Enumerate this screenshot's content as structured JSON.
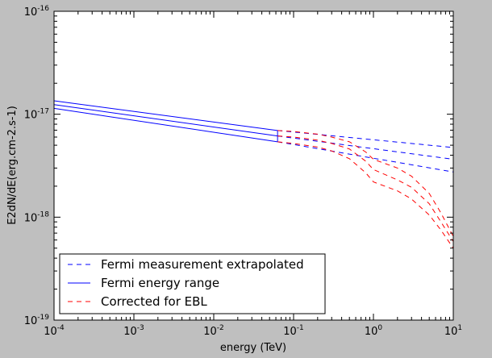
{
  "chart_data": {
    "type": "line",
    "xlabel": "energy (TeV)",
    "ylabel": "E2dN/dE(erg.cm-2.s-1)",
    "xscale": "log",
    "yscale": "log",
    "xlim": [
      0.0001,
      10
    ],
    "ylim": [
      1e-19,
      1e-16
    ],
    "x_ticks": [
      {
        "value": 0.0001,
        "base": "10",
        "exp": "-4"
      },
      {
        "value": 0.001,
        "base": "10",
        "exp": "-3"
      },
      {
        "value": 0.01,
        "base": "10",
        "exp": "-2"
      },
      {
        "value": 0.1,
        "base": "10",
        "exp": "-1"
      },
      {
        "value": 1,
        "base": "10",
        "exp": "0"
      },
      {
        "value": 10,
        "base": "10",
        "exp": "1"
      }
    ],
    "y_ticks": [
      {
        "value": 1e-19,
        "base": "10",
        "exp": "-19"
      },
      {
        "value": 1e-18,
        "base": "10",
        "exp": "-18"
      },
      {
        "value": 1e-17,
        "base": "10",
        "exp": "-17"
      },
      {
        "value": 1e-16,
        "base": "10",
        "exp": "-16"
      }
    ],
    "legend_position": "lower-left",
    "legend": [
      {
        "label": "Fermi measurement extrapolated",
        "color": "#0000ff",
        "style": "dashed"
      },
      {
        "label": "Fermi energy range",
        "color": "#0000ff",
        "style": "solid"
      },
      {
        "label": "Corrected for EBL",
        "color": "#ff0000",
        "style": "dashed"
      }
    ],
    "series": [
      {
        "color": "#0000ff",
        "style": "solid",
        "x": [
          0.0001,
          0.063
        ],
        "y": [
          1.35e-17,
          6.95e-18
        ]
      },
      {
        "color": "#0000ff",
        "style": "solid",
        "x": [
          0.0001,
          0.063
        ],
        "y": [
          1.24e-17,
          6.15e-18
        ]
      },
      {
        "color": "#0000ff",
        "style": "solid",
        "x": [
          0.0001,
          0.063
        ],
        "y": [
          1.14e-17,
          5.4e-18
        ]
      },
      {
        "color": "#0000ff",
        "style": "solid",
        "x": [
          0.063,
          0.063
        ],
        "y": [
          5.4e-18,
          6.95e-18
        ]
      },
      {
        "color": "#0000ff",
        "style": "dashed",
        "x": [
          0.063,
          10
        ],
        "y": [
          6.95e-18,
          4.75e-18
        ]
      },
      {
        "color": "#0000ff",
        "style": "dashed",
        "x": [
          0.063,
          10
        ],
        "y": [
          6.15e-18,
          3.65e-18
        ]
      },
      {
        "color": "#0000ff",
        "style": "dashed",
        "x": [
          0.063,
          10
        ],
        "y": [
          5.4e-18,
          2.75e-18
        ]
      },
      {
        "color": "#0000ff",
        "style": "solid",
        "x": [
          10,
          10
        ],
        "y": [
          2.75e-18,
          4.75e-18
        ]
      },
      {
        "color": "#ff0000",
        "style": "dashed",
        "x": [
          0.063,
          0.1,
          0.2,
          0.3,
          0.5,
          0.8,
          1,
          2,
          3,
          5,
          7,
          10
        ],
        "y": [
          6.95e-18,
          6.8e-18,
          6.4e-18,
          6e-18,
          5.4e-18,
          4.3e-18,
          3.65e-18,
          3e-18,
          2.5e-18,
          1.7e-18,
          1.1e-18,
          6.5e-19
        ]
      },
      {
        "color": "#ff0000",
        "style": "dashed",
        "x": [
          0.063,
          0.1,
          0.2,
          0.3,
          0.5,
          0.8,
          1,
          2,
          3,
          5,
          7,
          10
        ],
        "y": [
          6.15e-18,
          6e-18,
          5.6e-18,
          5.2e-18,
          4.6e-18,
          3.5e-18,
          2.9e-18,
          2.3e-18,
          1.95e-18,
          1.35e-18,
          9e-19,
          5.8e-19
        ]
      },
      {
        "color": "#ff0000",
        "style": "dashed",
        "x": [
          0.063,
          0.1,
          0.2,
          0.3,
          0.5,
          0.8,
          1,
          2,
          3,
          5,
          7,
          10
        ],
        "y": [
          5.4e-18,
          5.2e-18,
          4.8e-18,
          4.4e-18,
          3.7e-18,
          2.7e-18,
          2.2e-18,
          1.8e-18,
          1.5e-18,
          1.05e-18,
          7.5e-19,
          5e-19
        ]
      }
    ]
  }
}
